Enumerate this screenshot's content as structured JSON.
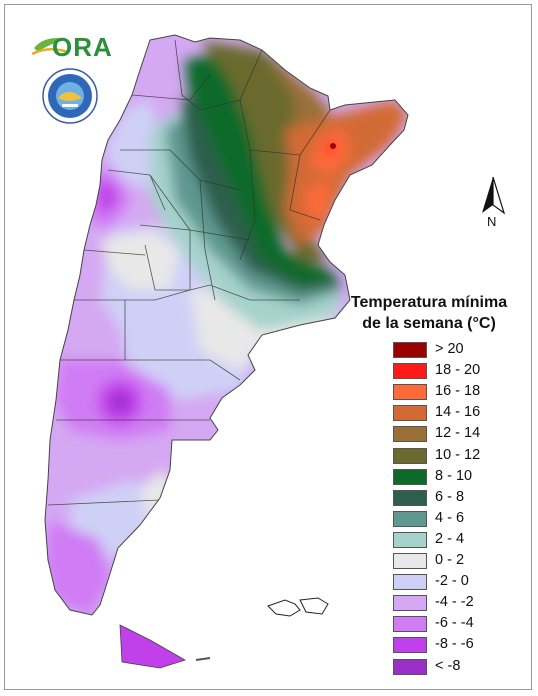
{
  "logo": {
    "text": "ORA",
    "icon": "ora-leaf-logo"
  },
  "seal": {
    "icon": "national-weather-service-seal"
  },
  "north_arrow": {
    "label": "N",
    "icon": "north-arrow-icon"
  },
  "legend": {
    "title_line1": "Temperatura mínima",
    "title_line2": "de la semana (°C)",
    "items": [
      {
        "label": "> 20",
        "color": "#9b0000"
      },
      {
        "label": "18 - 20",
        "color": "#ff1a1a"
      },
      {
        "label": "16 - 18",
        "color": "#ff6a3a"
      },
      {
        "label": "14 - 16",
        "color": "#d26a35"
      },
      {
        "label": "12 - 14",
        "color": "#9a7038"
      },
      {
        "label": "10 - 12",
        "color": "#6b6a2e"
      },
      {
        "label": "8 - 10",
        "color": "#0e6a2a"
      },
      {
        "label": "6 - 8",
        "color": "#2e5e4e"
      },
      {
        "label": "4 - 6",
        "color": "#5f9890"
      },
      {
        "label": "2 - 4",
        "color": "#a6d2cc"
      },
      {
        "label": "0 - 2",
        "color": "#e8e8e8"
      },
      {
        "label": "-2 - 0",
        "color": "#cfd0f6"
      },
      {
        "label": "-4 - -2",
        "color": "#d4a8f2"
      },
      {
        "label": "-6 - -4",
        "color": "#d07cf4"
      },
      {
        "label": "-8 - -6",
        "color": "#c041ea"
      },
      {
        "label": "< -8",
        "color": "#9a2fc8"
      }
    ]
  }
}
